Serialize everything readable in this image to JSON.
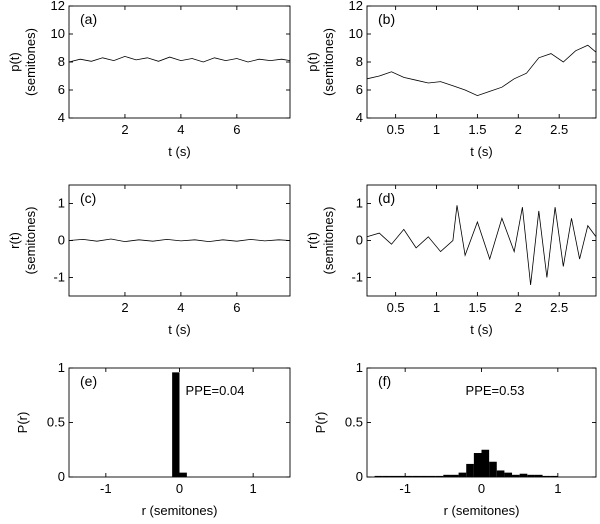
{
  "chart_data": [
    {
      "id": "a",
      "type": "line",
      "panel_label": "(a)",
      "xlabel": "t (s)",
      "ylabel": [
        "p(t)",
        "(semitones)"
      ],
      "xlim": [
        0,
        7.9
      ],
      "ylim": [
        4,
        12
      ],
      "xticks": [
        2,
        4,
        6
      ],
      "xtick_labels": [
        "2",
        "4",
        "6"
      ],
      "yticks": [
        4,
        6,
        8,
        10,
        12
      ],
      "ytick_labels": [
        "4",
        "6",
        "8",
        "10",
        "12"
      ],
      "series": [
        {
          "name": "p(t)",
          "x": [
            0.0,
            0.4,
            0.8,
            1.2,
            1.6,
            2.0,
            2.4,
            2.8,
            3.2,
            3.6,
            4.0,
            4.4,
            4.8,
            5.2,
            5.6,
            6.0,
            6.4,
            6.8,
            7.2,
            7.6,
            7.9
          ],
          "y": [
            8.0,
            8.2,
            8.05,
            8.3,
            8.1,
            8.4,
            8.15,
            8.3,
            8.05,
            8.35,
            8.1,
            8.25,
            8.0,
            8.3,
            8.1,
            8.25,
            8.0,
            8.2,
            8.1,
            8.2,
            8.1
          ]
        }
      ]
    },
    {
      "id": "b",
      "type": "line",
      "panel_label": "(b)",
      "xlabel": "t (s)",
      "ylabel": [
        "p(t)",
        "(semitones)"
      ],
      "xlim": [
        0.15,
        2.95
      ],
      "ylim": [
        4,
        12
      ],
      "xticks": [
        0.5,
        1,
        1.5,
        2,
        2.5
      ],
      "xtick_labels": [
        "0.5",
        "1",
        "1.5",
        "2",
        "2.5"
      ],
      "yticks": [
        4,
        6,
        8,
        10,
        12
      ],
      "ytick_labels": [
        "4",
        "6",
        "8",
        "10",
        "12"
      ],
      "series": [
        {
          "name": "p(t)",
          "x": [
            0.15,
            0.3,
            0.45,
            0.6,
            0.75,
            0.9,
            1.05,
            1.2,
            1.35,
            1.5,
            1.65,
            1.8,
            1.95,
            2.1,
            2.25,
            2.4,
            2.55,
            2.7,
            2.85,
            2.95
          ],
          "y": [
            6.8,
            7.0,
            7.3,
            6.9,
            6.7,
            6.5,
            6.6,
            6.3,
            6.0,
            5.6,
            5.9,
            6.2,
            6.8,
            7.2,
            8.3,
            8.6,
            8.0,
            8.8,
            9.2,
            8.7
          ]
        }
      ]
    },
    {
      "id": "c",
      "type": "line",
      "panel_label": "(c)",
      "xlabel": "t (s)",
      "ylabel": [
        "r(t)",
        "(semitones)"
      ],
      "xlim": [
        0,
        7.9
      ],
      "ylim": [
        -1.5,
        1.5
      ],
      "xticks": [
        2,
        4,
        6
      ],
      "xtick_labels": [
        "2",
        "4",
        "6"
      ],
      "yticks": [
        -1,
        0,
        1
      ],
      "ytick_labels": [
        "-1",
        "0",
        "1"
      ],
      "series": [
        {
          "name": "r(t)",
          "x": [
            0.0,
            0.5,
            1.0,
            1.5,
            2.0,
            2.5,
            3.0,
            3.5,
            4.0,
            4.5,
            5.0,
            5.5,
            6.0,
            6.5,
            7.0,
            7.5,
            7.9
          ],
          "y": [
            0.0,
            0.03,
            -0.02,
            0.04,
            -0.03,
            0.02,
            -0.02,
            0.03,
            -0.01,
            0.02,
            -0.03,
            0.02,
            -0.02,
            0.03,
            -0.01,
            0.02,
            0.0
          ]
        }
      ]
    },
    {
      "id": "d",
      "type": "line",
      "panel_label": "(d)",
      "xlabel": "t (s)",
      "ylabel": [
        "r(t)",
        "(semitones)"
      ],
      "xlim": [
        0.15,
        2.95
      ],
      "ylim": [
        -1.5,
        1.5
      ],
      "xticks": [
        0.5,
        1,
        1.5,
        2,
        2.5
      ],
      "xtick_labels": [
        "0.5",
        "1",
        "1.5",
        "2",
        "2.5"
      ],
      "yticks": [
        -1,
        0,
        1
      ],
      "ytick_labels": [
        "-1",
        "0",
        "1"
      ],
      "series": [
        {
          "name": "r(t)",
          "x": [
            0.15,
            0.3,
            0.45,
            0.6,
            0.75,
            0.9,
            1.05,
            1.2,
            1.25,
            1.35,
            1.5,
            1.65,
            1.8,
            1.95,
            2.05,
            2.15,
            2.25,
            2.35,
            2.45,
            2.55,
            2.65,
            2.75,
            2.85,
            2.95
          ],
          "y": [
            0.1,
            0.2,
            -0.1,
            0.3,
            -0.2,
            0.1,
            -0.3,
            0.0,
            0.95,
            -0.4,
            0.5,
            -0.5,
            0.6,
            -0.3,
            0.9,
            -1.2,
            0.8,
            -1.0,
            0.9,
            -0.7,
            0.6,
            -0.5,
            0.4,
            0.1
          ]
        }
      ]
    },
    {
      "id": "e",
      "type": "bar",
      "panel_label": "(e)",
      "xlabel": "r (semitones)",
      "ylabel": [
        "P(r)"
      ],
      "xlim": [
        -1.5,
        1.5
      ],
      "ylim": [
        0,
        1
      ],
      "xticks": [
        -1,
        0,
        1
      ],
      "xtick_labels": [
        "-1",
        "0",
        "1"
      ],
      "yticks": [
        0,
        0.5,
        1
      ],
      "ytick_labels": [
        "0",
        "0.5",
        "1"
      ],
      "bin_width": 0.1,
      "categories": [
        -0.05,
        0.05
      ],
      "values": [
        0.96,
        0.04
      ],
      "annotation": "PPE=0.04"
    },
    {
      "id": "f",
      "type": "bar",
      "panel_label": "(f)",
      "xlabel": "r (semitones)",
      "ylabel": [
        "P(r)"
      ],
      "xlim": [
        -1.5,
        1.5
      ],
      "ylim": [
        0,
        1
      ],
      "xticks": [
        -1,
        0,
        1
      ],
      "xtick_labels": [
        "-1",
        "0",
        "1"
      ],
      "yticks": [
        0,
        0.5,
        1
      ],
      "ytick_labels": [
        "0",
        "0.5",
        "1"
      ],
      "bin_width": 0.1,
      "categories": [
        -1.35,
        -1.25,
        -1.15,
        -1.05,
        -0.95,
        -0.85,
        -0.75,
        -0.65,
        -0.55,
        -0.45,
        -0.35,
        -0.25,
        -0.15,
        -0.05,
        0.05,
        0.15,
        0.25,
        0.35,
        0.45,
        0.55,
        0.65,
        0.75,
        0.85,
        0.95
      ],
      "values": [
        0.01,
        0.01,
        0.01,
        0.01,
        0.01,
        0.01,
        0.01,
        0.01,
        0.01,
        0.02,
        0.02,
        0.04,
        0.12,
        0.22,
        0.25,
        0.14,
        0.06,
        0.04,
        0.02,
        0.03,
        0.02,
        0.02,
        0.01,
        0.01
      ],
      "annotation": "PPE=0.53"
    }
  ]
}
